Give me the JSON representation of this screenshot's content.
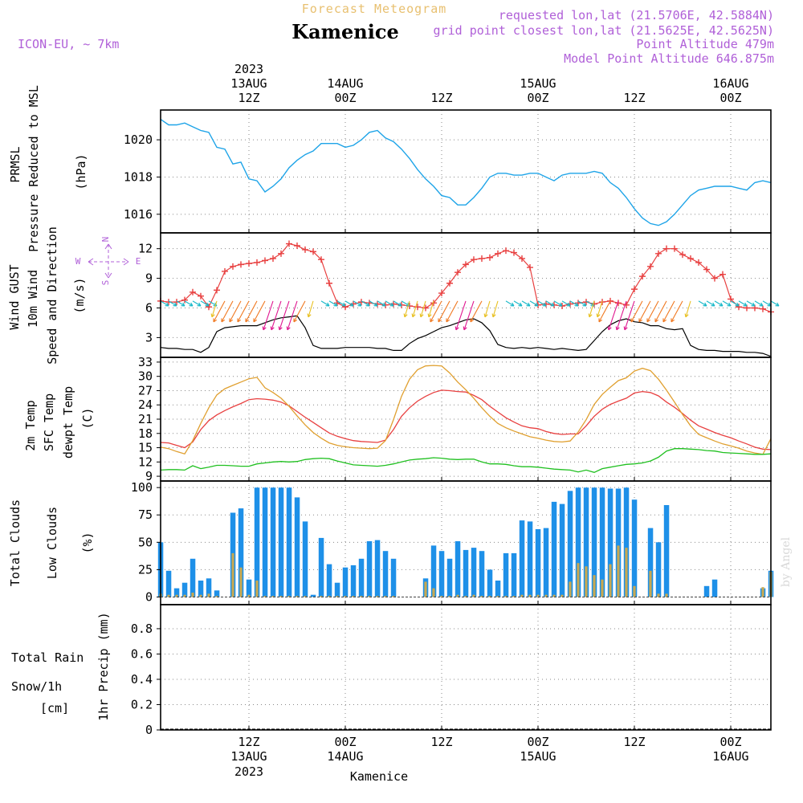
{
  "header": {
    "suptitle": "Forecast Meteogram",
    "location": "Kamenice",
    "model": "ICON-EU, ~ 7km",
    "requested": "requested lon,lat (21.5706E, 42.5884N)",
    "grid_point": "grid point closest lon,lat (21.5625E, 42.5625N)",
    "point_alt": "Point Altitude 479m",
    "model_alt": "Model Point Altitude 646.875m",
    "footer": "Kamenice",
    "watermark": "by Angel"
  },
  "time_axis": {
    "ticks": [
      {
        "h": 12,
        "line1": "12Z",
        "line2": "13AUG",
        "line3": "2023"
      },
      {
        "h": 24,
        "line1": "00Z",
        "line2": "14AUG",
        "line3": ""
      },
      {
        "h": 36,
        "line1": "12Z",
        "line2": "",
        "line3": ""
      },
      {
        "h": 48,
        "line1": "00Z",
        "line2": "15AUG",
        "line3": ""
      },
      {
        "h": 60,
        "line1": "12Z",
        "line2": "",
        "line3": ""
      },
      {
        "h": 72,
        "line1": "00Z",
        "line2": "16AUG",
        "line3": ""
      }
    ],
    "range_hours": [
      1,
      77
    ]
  },
  "colors": {
    "pressure": "#1ea4e8",
    "gust": "#e84040",
    "wind": "#000000",
    "sfc": "#e0a030",
    "dew": "#20c020",
    "total_clouds": "#1e90e8",
    "low_clouds": "#c8a850",
    "rain": "#20c040",
    "snow": "#4040e8",
    "violet": "#b060d8"
  },
  "chart_data": [
    {
      "type": "line",
      "panel": "pressure",
      "labels": {
        "l1": "PRMSL",
        "l2": "Pressure Reduced to MSL",
        "unit": "(hPa)"
      },
      "ylim": [
        1015,
        1021.6
      ],
      "yticks": [
        1016,
        1018,
        1020
      ],
      "x": [
        1,
        2,
        3,
        4,
        5,
        6,
        7,
        8,
        9,
        10,
        11,
        12,
        13,
        14,
        15,
        16,
        17,
        18,
        19,
        20,
        21,
        22,
        23,
        24,
        25,
        26,
        27,
        28,
        29,
        30,
        31,
        32,
        33,
        34,
        35,
        36,
        37,
        38,
        39,
        40,
        41,
        42,
        43,
        44,
        45,
        46,
        47,
        48,
        49,
        50,
        51,
        52,
        53,
        54,
        55,
        56,
        57,
        58,
        59,
        60,
        61,
        62,
        63,
        64,
        65,
        66,
        67,
        68,
        69,
        70,
        71,
        72,
        73,
        74,
        75,
        76,
        77
      ],
      "series": [
        {
          "values": [
            1021.1,
            1020.8,
            1020.8,
            1020.9,
            1020.7,
            1020.5,
            1020.4,
            1019.6,
            1019.5,
            1018.7,
            1018.8,
            1017.9,
            1017.8,
            1017.2,
            1017.5,
            1017.9,
            1018.5,
            1018.9,
            1019.2,
            1019.4,
            1019.8,
            1019.8,
            1019.8,
            1019.6,
            1019.7,
            1020.0,
            1020.4,
            1020.5,
            1020.1,
            1019.9,
            1019.5,
            1019.0,
            1018.4,
            1017.9,
            1017.5,
            1017.0,
            1016.9,
            1016.5,
            1016.5,
            1016.9,
            1017.4,
            1018.0,
            1018.2,
            1018.2,
            1018.1,
            1018.1,
            1018.2,
            1018.2,
            1018.0,
            1017.8,
            1018.1,
            1018.2,
            1018.2,
            1018.2,
            1018.3,
            1018.2,
            1017.7,
            1017.4,
            1016.9,
            1016.3,
            1015.8,
            1015.5,
            1015.4,
            1015.6,
            1016.0,
            1016.5,
            1017.0,
            1017.3,
            1017.4,
            1017.5,
            1017.5,
            1017.5,
            1017.4,
            1017.3,
            1017.7,
            1017.8,
            1017.7
          ]
        }
      ]
    },
    {
      "type": "line",
      "panel": "wind",
      "labels": {
        "l1": "Wind GUST",
        "l2": "10m Wind",
        "l3": "Speed and Direction",
        "unit": "(m/s)",
        "compass_n": "N",
        "compass_s": "S",
        "compass_w": "W",
        "compass_e": "E"
      },
      "ylim": [
        1,
        13.6
      ],
      "yticks": [
        3,
        6,
        9,
        12
      ],
      "x": [
        1,
        2,
        3,
        4,
        5,
        6,
        7,
        8,
        9,
        10,
        11,
        12,
        13,
        14,
        15,
        16,
        17,
        18,
        19,
        20,
        21,
        22,
        23,
        24,
        25,
        26,
        27,
        28,
        29,
        30,
        31,
        32,
        33,
        34,
        35,
        36,
        37,
        38,
        39,
        40,
        41,
        42,
        43,
        44,
        45,
        46,
        47,
        48,
        49,
        50,
        51,
        52,
        53,
        54,
        55,
        56,
        57,
        58,
        59,
        60,
        61,
        62,
        63,
        64,
        65,
        66,
        67,
        68,
        69,
        70,
        71,
        72,
        73,
        74,
        75,
        76,
        77
      ],
      "series": [
        {
          "name": "Wind GUST",
          "values": [
            6.7,
            6.6,
            6.6,
            6.8,
            7.6,
            7.2,
            6.1,
            7.8,
            9.7,
            10.2,
            10.4,
            10.5,
            10.6,
            10.8,
            11.0,
            11.5,
            12.5,
            12.3,
            11.9,
            11.7,
            10.9,
            8.5,
            6.5,
            6.1,
            6.4,
            6.6,
            6.5,
            6.4,
            6.3,
            6.4,
            6.3,
            6.2,
            6.1,
            6.0,
            6.5,
            7.5,
            8.5,
            9.6,
            10.4,
            10.9,
            11.0,
            11.1,
            11.5,
            11.8,
            11.6,
            11.0,
            10.1,
            6.3,
            6.4,
            6.3,
            6.2,
            6.4,
            6.5,
            6.6,
            6.4,
            6.6,
            6.7,
            6.5,
            6.3,
            7.9,
            9.2,
            10.2,
            11.5,
            12.0,
            12.0,
            11.4,
            11.0,
            10.6,
            9.9,
            9.0,
            9.4,
            6.9,
            6.1,
            6.0,
            6.0,
            5.9,
            5.6
          ]
        },
        {
          "name": "10m Wind",
          "values": [
            2.0,
            1.9,
            1.9,
            1.8,
            1.8,
            1.5,
            2.0,
            3.6,
            4.0,
            4.1,
            4.2,
            4.2,
            4.2,
            4.5,
            4.8,
            5.0,
            5.1,
            5.2,
            4.0,
            2.2,
            1.9,
            1.9,
            1.9,
            2.0,
            2.0,
            2.0,
            2.0,
            1.9,
            1.9,
            1.7,
            1.7,
            2.4,
            2.9,
            3.2,
            3.6,
            4.0,
            4.2,
            4.5,
            4.8,
            4.9,
            4.5,
            3.7,
            2.3,
            2.0,
            1.9,
            2.0,
            1.9,
            2.0,
            1.9,
            1.8,
            1.9,
            1.8,
            1.7,
            1.8,
            2.7,
            3.6,
            4.3,
            4.7,
            4.9,
            4.6,
            4.5,
            4.2,
            4.2,
            3.9,
            3.8,
            3.9,
            2.2,
            1.8,
            1.7,
            1.7,
            1.6,
            1.6,
            1.6,
            1.5,
            1.5,
            1.4,
            1.1
          ]
        }
      ]
    },
    {
      "type": "line",
      "panel": "temperature",
      "labels": {
        "l1": "2m Temp",
        "l2": "SFC Temp",
        "l3": "dewpt Temp",
        "unit": "(C)"
      },
      "ylim": [
        8,
        34
      ],
      "yticks": [
        9,
        12,
        15,
        18,
        21,
        24,
        27,
        30,
        33
      ],
      "x": [
        1,
        2,
        3,
        4,
        5,
        6,
        7,
        8,
        9,
        10,
        11,
        12,
        13,
        14,
        15,
        16,
        17,
        18,
        19,
        20,
        21,
        22,
        23,
        24,
        25,
        26,
        27,
        28,
        29,
        30,
        31,
        32,
        33,
        34,
        35,
        36,
        37,
        38,
        39,
        40,
        41,
        42,
        43,
        44,
        45,
        46,
        47,
        48,
        49,
        50,
        51,
        52,
        53,
        54,
        55,
        56,
        57,
        58,
        59,
        60,
        61,
        62,
        63,
        64,
        65,
        66,
        67,
        68,
        69,
        70,
        71,
        72,
        73,
        74,
        75,
        76,
        77
      ],
      "series": [
        {
          "name": "2m Temp",
          "values": [
            16.1,
            16.0,
            15.5,
            15.0,
            16.2,
            18.8,
            20.7,
            21.9,
            22.8,
            23.6,
            24.3,
            25.1,
            25.3,
            25.2,
            25.0,
            24.6,
            23.8,
            22.6,
            21.4,
            20.3,
            19.2,
            18.1,
            17.4,
            16.9,
            16.5,
            16.3,
            16.2,
            16.1,
            16.6,
            18.8,
            21.6,
            23.4,
            24.8,
            25.8,
            26.6,
            27.1,
            27.0,
            26.8,
            26.7,
            26.0,
            25.1,
            23.7,
            22.5,
            21.3,
            20.4,
            19.6,
            19.2,
            19.0,
            18.4,
            18.0,
            17.8,
            17.9,
            17.9,
            19.6,
            21.6,
            23.1,
            24.1,
            24.8,
            25.4,
            26.5,
            26.8,
            26.6,
            25.9,
            24.6,
            23.5,
            22.2,
            20.8,
            19.6,
            18.9,
            18.2,
            17.6,
            17.1,
            16.4,
            15.8,
            15.1,
            14.7,
            14.6
          ]
        },
        {
          "name": "SFC Temp",
          "values": [
            15.1,
            14.8,
            14.2,
            13.7,
            16.5,
            20.1,
            23.4,
            26.1,
            27.4,
            28.1,
            28.8,
            29.5,
            29.8,
            27.6,
            26.6,
            25.4,
            23.7,
            21.7,
            19.8,
            18.2,
            17.0,
            16.0,
            15.5,
            15.2,
            15.0,
            14.9,
            14.8,
            14.9,
            16.5,
            20.9,
            25.8,
            29.4,
            31.4,
            32.2,
            32.3,
            32.2,
            30.7,
            28.8,
            27.2,
            25.4,
            23.4,
            21.6,
            20.1,
            19.2,
            18.5,
            17.9,
            17.3,
            17.0,
            16.6,
            16.3,
            16.2,
            16.4,
            18.3,
            20.9,
            24.1,
            26.2,
            27.7,
            29.1,
            29.7,
            31.1,
            31.7,
            31.2,
            29.4,
            27.1,
            24.6,
            22.0,
            19.6,
            17.8,
            17.1,
            16.4,
            15.8,
            15.4,
            14.9,
            14.3,
            13.9,
            13.6,
            16.9
          ]
        },
        {
          "name": "dewpt Temp",
          "values": [
            10.3,
            10.4,
            10.4,
            10.3,
            11.2,
            10.6,
            10.9,
            11.3,
            11.3,
            11.2,
            11.1,
            11.1,
            11.6,
            11.8,
            12.0,
            12.1,
            12.0,
            12.1,
            12.5,
            12.7,
            12.8,
            12.7,
            12.2,
            11.8,
            11.4,
            11.3,
            11.2,
            11.1,
            11.3,
            11.6,
            12.0,
            12.4,
            12.6,
            12.7,
            12.9,
            12.8,
            12.6,
            12.5,
            12.6,
            12.6,
            12.0,
            11.6,
            11.6,
            11.5,
            11.2,
            11.0,
            11.0,
            10.9,
            10.7,
            10.5,
            10.4,
            10.3,
            9.9,
            10.3,
            9.8,
            10.6,
            10.9,
            11.2,
            11.5,
            11.6,
            11.8,
            12.2,
            13.0,
            14.3,
            14.8,
            14.8,
            14.7,
            14.6,
            14.4,
            14.3,
            14.0,
            13.9,
            13.8,
            13.7,
            13.6,
            13.6,
            13.7
          ]
        }
      ]
    },
    {
      "type": "bar",
      "panel": "clouds",
      "labels": {
        "l1": "Total Clouds",
        "l2": "Low Clouds",
        "unit": "(%)"
      },
      "ylim": [
        -7,
        106
      ],
      "yticks": [
        0,
        25,
        50,
        75,
        100
      ],
      "x": [
        1,
        2,
        3,
        4,
        5,
        6,
        7,
        8,
        9,
        10,
        11,
        12,
        13,
        14,
        15,
        16,
        17,
        18,
        19,
        20,
        21,
        22,
        23,
        24,
        25,
        26,
        27,
        28,
        29,
        30,
        31,
        32,
        33,
        34,
        35,
        36,
        37,
        38,
        39,
        40,
        41,
        42,
        43,
        44,
        45,
        46,
        47,
        48,
        49,
        50,
        51,
        52,
        53,
        54,
        55,
        56,
        57,
        58,
        59,
        60,
        61,
        62,
        63,
        64,
        65,
        66,
        67,
        68,
        69,
        70,
        71,
        72,
        73,
        74,
        75,
        76,
        77
      ],
      "series": [
        {
          "name": "Total Clouds",
          "values": [
            50,
            24,
            8,
            13,
            35,
            15,
            17,
            6,
            0,
            77,
            81,
            16,
            100,
            100,
            100,
            100,
            100,
            91,
            69,
            2,
            54,
            30,
            13,
            27,
            29,
            35,
            51,
            52,
            42,
            35,
            0,
            0,
            0,
            17,
            47,
            42,
            35,
            51,
            43,
            45,
            42,
            25,
            15,
            40,
            40,
            70,
            69,
            62,
            63,
            87,
            85,
            97,
            100,
            100,
            100,
            100,
            99,
            99,
            100,
            89,
            0,
            63,
            50,
            84,
            0,
            0,
            0,
            0,
            10,
            16,
            0,
            0,
            0,
            0,
            0,
            8,
            24
          ]
        },
        {
          "name": "Low Clouds",
          "values": [
            3,
            2,
            2,
            2,
            4,
            2,
            3,
            1,
            0,
            40,
            27,
            2,
            15,
            1,
            1,
            1,
            1,
            1,
            1,
            0,
            1,
            1,
            1,
            1,
            1,
            1,
            1,
            1,
            1,
            1,
            0,
            0,
            0,
            14,
            8,
            1,
            1,
            2,
            1,
            2,
            1,
            1,
            1,
            1,
            1,
            2,
            2,
            2,
            2,
            2,
            2,
            14,
            31,
            28,
            20,
            16,
            30,
            47,
            45,
            10,
            0,
            24,
            3,
            3,
            0,
            0,
            0,
            0,
            0,
            0,
            0,
            0,
            0,
            0,
            0,
            9,
            23
          ]
        }
      ]
    },
    {
      "type": "line",
      "panel": "precip",
      "labels": {
        "l1": "Total Rain",
        "l2": "Snow/1h",
        "l3": "[cm]",
        "unit": "1hr Precip (mm)"
      },
      "ylim": [
        0,
        0.99
      ],
      "yticks": [
        0,
        0.2,
        0.4,
        0.6,
        0.8
      ],
      "series": [
        {
          "values": []
        }
      ]
    }
  ]
}
